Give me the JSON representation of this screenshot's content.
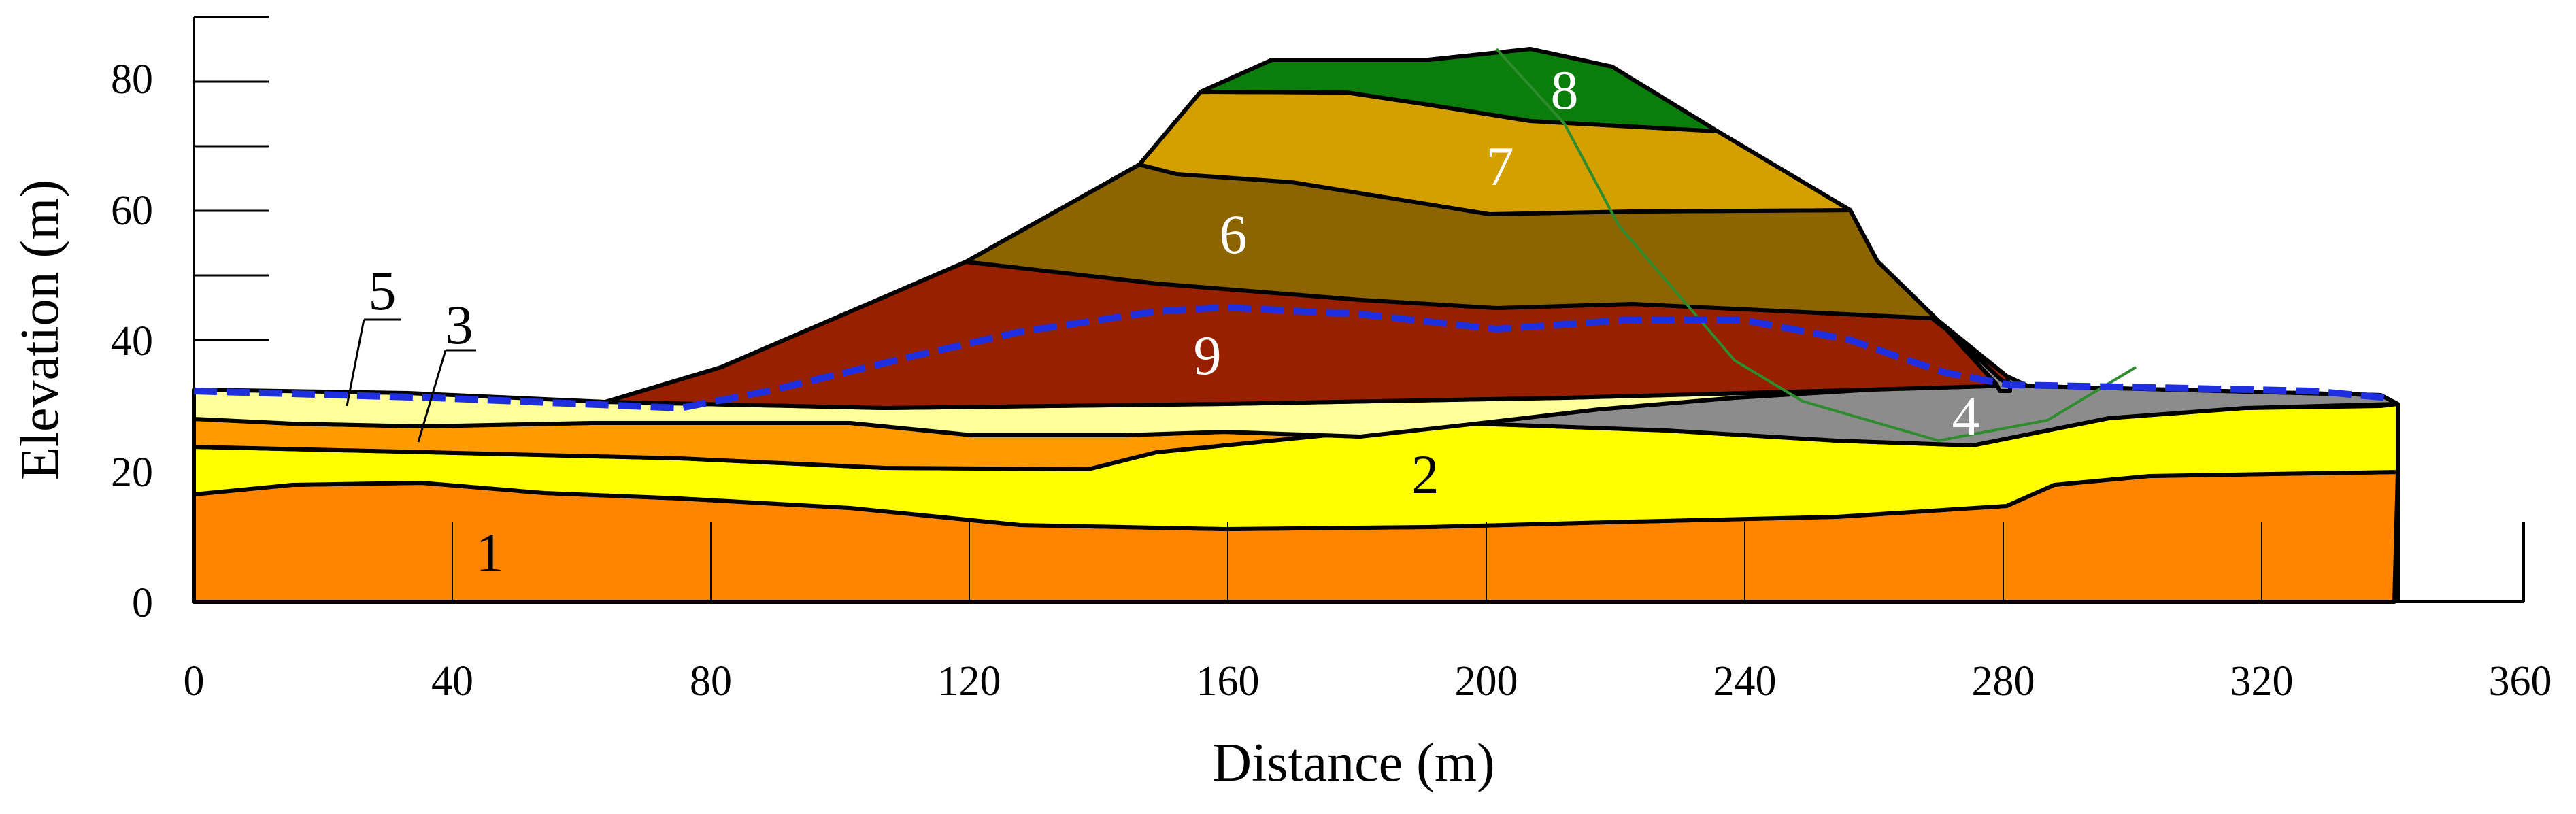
{
  "figure": {
    "x_axis": {
      "title": "Distance (m)",
      "ticks": [
        "0",
        "40",
        "80",
        "120",
        "160",
        "200",
        "240",
        "280",
        "320",
        "360"
      ]
    },
    "y_axis": {
      "title": "Elevation (m)",
      "ticks": [
        "0",
        "20",
        "40",
        "60",
        "80"
      ]
    }
  },
  "colors": {
    "layer_1": "#ff8400",
    "layer_2": "#ffff00",
    "layer_3": "#ff9a00",
    "layer_4": "#8c8c8c",
    "layer_5": "#ffff99",
    "layer_6": "#8c6400",
    "layer_7": "#d4a000",
    "layer_8": "#0a7d0a",
    "layer_9": "#962000",
    "water_table": "#1f2fe0",
    "slip_surface": "#2e8b2e"
  },
  "layers": [
    {
      "id": "1",
      "label": "1"
    },
    {
      "id": "2",
      "label": "2"
    },
    {
      "id": "3",
      "label": "3"
    },
    {
      "id": "4",
      "label": "4"
    },
    {
      "id": "5",
      "label": "5"
    },
    {
      "id": "6",
      "label": "6"
    },
    {
      "id": "7",
      "label": "7"
    },
    {
      "id": "8",
      "label": "8"
    },
    {
      "id": "9",
      "label": "9"
    }
  ]
}
